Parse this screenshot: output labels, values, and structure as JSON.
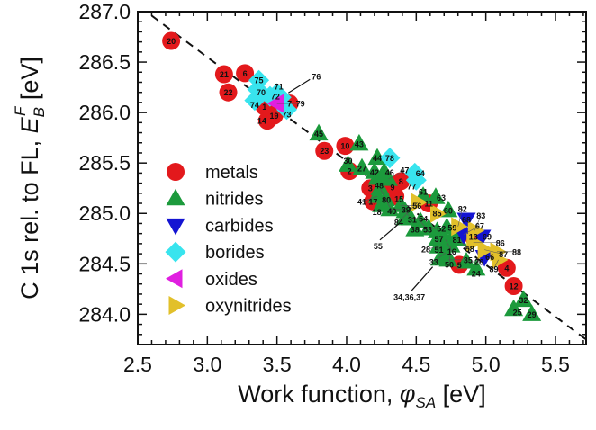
{
  "chart_data": {
    "type": "scatter",
    "title": "",
    "xlabel": {
      "main": "Work function, ",
      "symbol": "φ",
      "sub": "SA",
      "unit": " [eV]"
    },
    "ylabel": {
      "main": "C 1s rel. to FL, ",
      "symbol": "E",
      "sub": "B",
      "sup": "F",
      "unit": " [eV]"
    },
    "xlim": [
      2.5,
      5.72
    ],
    "ylim": [
      283.7,
      287.0
    ],
    "xticks": [
      "2.5",
      "3.0",
      "3.5",
      "4.0",
      "4.5",
      "5.0",
      "5.5"
    ],
    "yticks": [
      "284.0",
      "284.5",
      "285.0",
      "285.5",
      "286.0",
      "286.5",
      "287.0"
    ],
    "grid": false,
    "legend_position": "left-middle",
    "colors": {
      "metals": "#e3191c",
      "nitrides": "#1c9a3c",
      "carbides": "#1414d2",
      "borides": "#38e4ee",
      "oxides": "#e01fe0",
      "oxynitrides": "#e2c02a"
    },
    "fit_line": {
      "x": [
        2.6,
        5.72
      ],
      "y": [
        286.96,
        283.75
      ],
      "style": "dashed"
    },
    "series": [
      {
        "name": "metals",
        "marker": "circle",
        "points": [
          {
            "label": "20",
            "x": 2.74,
            "y": 286.71
          },
          {
            "label": "21",
            "x": 3.12,
            "y": 286.38
          },
          {
            "label": "6",
            "x": 3.27,
            "y": 286.39
          },
          {
            "label": "22",
            "x": 3.15,
            "y": 286.2
          },
          {
            "label": "7",
            "x": 3.59,
            "y": 286.09
          },
          {
            "label": "1",
            "x": 3.41,
            "y": 286.06
          },
          {
            "label": "19",
            "x": 3.48,
            "y": 285.97
          },
          {
            "label": "14",
            "x": 3.43,
            "y": 285.92
          },
          {
            "label": "23",
            "x": 3.84,
            "y": 285.62
          },
          {
            "label": "10",
            "x": 3.99,
            "y": 285.67
          },
          {
            "label": "2",
            "x": 4.02,
            "y": 285.42
          },
          {
            "label": "8",
            "x": 4.39,
            "y": 285.32
          },
          {
            "label": "3",
            "x": 4.17,
            "y": 285.25
          },
          {
            "label": "9",
            "x": 4.33,
            "y": 285.26
          },
          {
            "label": "17",
            "x": 4.19,
            "y": 285.12
          },
          {
            "label": "15",
            "x": 4.35,
            "y": 285.17
          },
          {
            "label": "11",
            "x": 4.59,
            "y": 285.1
          },
          {
            "label": "13",
            "x": 4.91,
            "y": 284.77
          },
          {
            "label": "5",
            "x": 4.81,
            "y": 284.49
          },
          {
            "label": "4",
            "x": 5.15,
            "y": 284.46
          },
          {
            "label": "12",
            "x": 5.2,
            "y": 284.28
          }
        ]
      },
      {
        "name": "nitrides",
        "marker": "triangle-up",
        "points": [
          {
            "label": "45",
            "x": 3.8,
            "y": 285.79
          },
          {
            "label": "43",
            "x": 4.09,
            "y": 285.69
          },
          {
            "label": "44",
            "x": 4.22,
            "y": 285.55
          },
          {
            "label": "30",
            "x": 4.01,
            "y": 285.48
          },
          {
            "label": "27",
            "x": 4.11,
            "y": 285.45
          },
          {
            "label": "42",
            "x": 4.2,
            "y": 285.41
          },
          {
            "label": "46",
            "x": 4.27,
            "y": 285.41
          },
          {
            "label": "48",
            "x": 4.22,
            "y": 285.35
          },
          {
            "label": "47",
            "x": 4.3,
            "y": 285.34
          },
          {
            "label": "80",
            "x": 4.24,
            "y": 285.25
          },
          {
            "label": "41",
            "x": 4.22,
            "y": 285.17
          },
          {
            "label": "40",
            "x": 4.28,
            "y": 285.14
          },
          {
            "label": "18",
            "x": 4.25,
            "y": 285.08
          },
          {
            "label": "39",
            "x": 4.31,
            "y": 285.04
          },
          {
            "label": "56",
            "x": 4.39,
            "y": 285.08
          },
          {
            "label": "31",
            "x": 4.42,
            "y": 285.02
          },
          {
            "label": "61",
            "x": 4.55,
            "y": 285.17
          },
          {
            "label": "63",
            "x": 4.64,
            "y": 285.16
          },
          {
            "label": "60",
            "x": 4.73,
            "y": 285.03
          },
          {
            "label": "54",
            "x": 4.46,
            "y": 284.95
          },
          {
            "label": "53",
            "x": 4.53,
            "y": 284.92
          },
          {
            "label": "55",
            "x": 4.42,
            "y": 284.95
          },
          {
            "label": "38",
            "x": 4.49,
            "y": 284.84
          },
          {
            "label": "52",
            "x": 4.59,
            "y": 284.85
          },
          {
            "label": "57",
            "x": 4.65,
            "y": 284.82
          },
          {
            "label": "59",
            "x": 4.72,
            "y": 284.86
          },
          {
            "label": "81",
            "x": 4.78,
            "y": 284.81
          },
          {
            "label": "51",
            "x": 4.65,
            "y": 284.74
          },
          {
            "label": "16",
            "x": 4.71,
            "y": 284.74
          },
          {
            "label": "58",
            "x": 4.8,
            "y": 284.74
          },
          {
            "label": "50",
            "x": 4.75,
            "y": 284.68
          },
          {
            "label": "28",
            "x": 4.66,
            "y": 284.67
          },
          {
            "label": "33",
            "x": 4.71,
            "y": 284.61
          },
          {
            "label": "35",
            "x": 4.73,
            "y": 284.54
          },
          {
            "label": "34,36,37",
            "x": 4.67,
            "y": 284.55
          },
          {
            "label": "26",
            "x": 4.86,
            "y": 284.52
          },
          {
            "label": "24",
            "x": 4.93,
            "y": 284.45
          },
          {
            "label": "32",
            "x": 5.27,
            "y": 284.14
          },
          {
            "label": "25",
            "x": 5.2,
            "y": 284.05
          },
          {
            "label": "29",
            "x": 5.33,
            "y": 284.0
          }
        ]
      },
      {
        "name": "carbides",
        "marker": "triangle-down",
        "points": [
          {
            "label": "68",
            "x": 4.86,
            "y": 284.94
          },
          {
            "label": "67",
            "x": 4.84,
            "y": 284.79
          },
          {
            "label": "69",
            "x": 4.97,
            "y": 284.77
          },
          {
            "label": "66",
            "x": 4.99,
            "y": 284.57
          }
        ]
      },
      {
        "name": "borides",
        "marker": "diamond",
        "points": [
          {
            "label": "75",
            "x": 3.37,
            "y": 286.32
          },
          {
            "label": "70",
            "x": 3.36,
            "y": 286.23
          },
          {
            "label": "74",
            "x": 3.34,
            "y": 286.12
          },
          {
            "label": "72",
            "x": 3.45,
            "y": 286.16
          },
          {
            "label": "71",
            "x": 3.5,
            "y": 286.19
          },
          {
            "label": "73",
            "x": 3.57,
            "y": 286.03
          },
          {
            "label": "76",
            "x": 3.53,
            "y": 286.15
          },
          {
            "label": "78",
            "x": 4.31,
            "y": 285.55
          },
          {
            "label": "64",
            "x": 4.49,
            "y": 285.4
          },
          {
            "label": "77",
            "x": 4.5,
            "y": 285.33
          }
        ]
      },
      {
        "name": "oxides",
        "marker": "triangle-left",
        "points": [
          {
            "label": "79",
            "x": 3.5,
            "y": 286.09
          }
        ]
      },
      {
        "name": "oxynitrides",
        "marker": "triangle-right",
        "points": [
          {
            "label": "84",
            "x": 4.51,
            "y": 285.11
          },
          {
            "label": "85",
            "x": 4.65,
            "y": 285.0
          },
          {
            "label": "82",
            "x": 4.8,
            "y": 284.87
          },
          {
            "label": "83",
            "x": 4.92,
            "y": 284.83
          },
          {
            "label": "86",
            "x": 4.91,
            "y": 284.71
          },
          {
            "label": "87",
            "x": 4.99,
            "y": 284.64
          },
          {
            "label": "88",
            "x": 5.08,
            "y": 284.62
          },
          {
            "label": "89",
            "x": 5.09,
            "y": 284.54
          }
        ]
      }
    ],
    "annotations": [
      {
        "text": "76",
        "x": 3.53,
        "y": 286.15
      },
      {
        "text": "55",
        "x": 4.42,
        "y": 284.95
      },
      {
        "text": "34,36,37",
        "x": 4.67,
        "y": 284.55
      }
    ]
  }
}
